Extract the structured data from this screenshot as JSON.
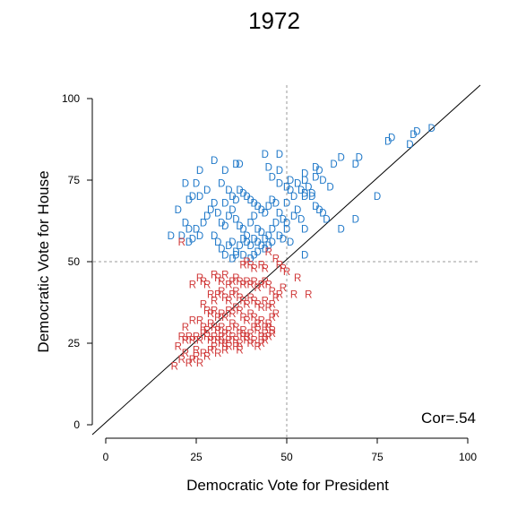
{
  "chart_data": {
    "type": "scatter",
    "title": "1972",
    "xlabel": "Democratic Vote for President",
    "ylabel": "Democratic Vote for House",
    "xlim": [
      0,
      100
    ],
    "ylim": [
      0,
      100
    ],
    "xticks": [
      "0",
      "25",
      "50",
      "75",
      "100"
    ],
    "yticks": [
      "0",
      "25",
      "50",
      "75",
      "100"
    ],
    "annotation": "Cor=.54",
    "reference_lines": {
      "diagonal": true,
      "vline_x": 50,
      "hline_y": 50
    },
    "colors": {
      "D": "#1f78c8",
      "R": "#d03838"
    },
    "series": [
      {
        "marker": "D",
        "points": [
          [
            44,
            83
          ],
          [
            48,
            83
          ],
          [
            90,
            91
          ],
          [
            86,
            90
          ],
          [
            85,
            89
          ],
          [
            79,
            88
          ],
          [
            78,
            87
          ],
          [
            84,
            86
          ],
          [
            65,
            82
          ],
          [
            63,
            80
          ],
          [
            70,
            82
          ],
          [
            69,
            80
          ],
          [
            58,
            79
          ],
          [
            59,
            78
          ],
          [
            55,
            77
          ],
          [
            51,
            75
          ],
          [
            53,
            74
          ],
          [
            55,
            75
          ],
          [
            56,
            73
          ],
          [
            57,
            71
          ],
          [
            55,
            70
          ],
          [
            58,
            76
          ],
          [
            60,
            75
          ],
          [
            62,
            73
          ],
          [
            30,
            81
          ],
          [
            36,
            80
          ],
          [
            37,
            80
          ],
          [
            33,
            78
          ],
          [
            45,
            79
          ],
          [
            48,
            78
          ],
          [
            46,
            76
          ],
          [
            48,
            74
          ],
          [
            50,
            73
          ],
          [
            51,
            72
          ],
          [
            54,
            72
          ],
          [
            55,
            71
          ],
          [
            57,
            70
          ],
          [
            58,
            67
          ],
          [
            59,
            66
          ],
          [
            60,
            65
          ],
          [
            61,
            63
          ],
          [
            50,
            68
          ],
          [
            52,
            70
          ],
          [
            22,
            74
          ],
          [
            25,
            74
          ],
          [
            26,
            78
          ],
          [
            24,
            70
          ],
          [
            23,
            69
          ],
          [
            26,
            70
          ],
          [
            28,
            72
          ],
          [
            32,
            74
          ],
          [
            34,
            72
          ],
          [
            35,
            70
          ],
          [
            33,
            68
          ],
          [
            36,
            69
          ],
          [
            37,
            72
          ],
          [
            38,
            71
          ],
          [
            39,
            70
          ],
          [
            40,
            69
          ],
          [
            41,
            68
          ],
          [
            42,
            67
          ],
          [
            43,
            66
          ],
          [
            44,
            65
          ],
          [
            45,
            67
          ],
          [
            46,
            69
          ],
          [
            47,
            68
          ],
          [
            48,
            65
          ],
          [
            49,
            63
          ],
          [
            50,
            62
          ],
          [
            52,
            64
          ],
          [
            53,
            66
          ],
          [
            54,
            63
          ],
          [
            55,
            60
          ],
          [
            20,
            66
          ],
          [
            22,
            62
          ],
          [
            23,
            60
          ],
          [
            25,
            60
          ],
          [
            26,
            58
          ],
          [
            27,
            62
          ],
          [
            28,
            64
          ],
          [
            29,
            66
          ],
          [
            30,
            68
          ],
          [
            31,
            65
          ],
          [
            32,
            62
          ],
          [
            33,
            61
          ],
          [
            34,
            64
          ],
          [
            35,
            66
          ],
          [
            36,
            63
          ],
          [
            37,
            61
          ],
          [
            38,
            60
          ],
          [
            39,
            58
          ],
          [
            40,
            62
          ],
          [
            41,
            64
          ],
          [
            42,
            60
          ],
          [
            43,
            59
          ],
          [
            44,
            57
          ],
          [
            45,
            58
          ],
          [
            46,
            60
          ],
          [
            47,
            62
          ],
          [
            48,
            58
          ],
          [
            49,
            57
          ],
          [
            50,
            60
          ],
          [
            51,
            56
          ],
          [
            18,
            58
          ],
          [
            21,
            58
          ],
          [
            23,
            56
          ],
          [
            24,
            57
          ],
          [
            30,
            58
          ],
          [
            31,
            56
          ],
          [
            32,
            54
          ],
          [
            34,
            55
          ],
          [
            35,
            56
          ],
          [
            36,
            53
          ],
          [
            37,
            55
          ],
          [
            38,
            57
          ],
          [
            39,
            56
          ],
          [
            40,
            55
          ],
          [
            41,
            57
          ],
          [
            42,
            56
          ],
          [
            43,
            55
          ],
          [
            44,
            54
          ],
          [
            45,
            55
          ],
          [
            46,
            56
          ],
          [
            33,
            52
          ],
          [
            35,
            51
          ],
          [
            36,
            52
          ],
          [
            38,
            52
          ],
          [
            40,
            51
          ],
          [
            41,
            52
          ],
          [
            42,
            53
          ],
          [
            55,
            52
          ],
          [
            65,
            60
          ],
          [
            69,
            63
          ],
          [
            75,
            70
          ]
        ]
      },
      {
        "marker": "R",
        "points": [
          [
            21,
            56
          ],
          [
            45,
            53
          ],
          [
            47,
            51
          ],
          [
            48,
            49
          ],
          [
            49,
            48
          ],
          [
            50,
            47
          ],
          [
            53,
            45
          ],
          [
            38,
            49
          ],
          [
            39,
            50
          ],
          [
            40,
            49
          ],
          [
            41,
            48
          ],
          [
            43,
            49
          ],
          [
            44,
            48
          ],
          [
            26,
            45
          ],
          [
            27,
            44
          ],
          [
            30,
            46
          ],
          [
            31,
            45
          ],
          [
            32,
            44
          ],
          [
            33,
            46
          ],
          [
            34,
            43
          ],
          [
            35,
            44
          ],
          [
            36,
            45
          ],
          [
            37,
            44
          ],
          [
            38,
            43
          ],
          [
            39,
            44
          ],
          [
            40,
            43
          ],
          [
            41,
            44
          ],
          [
            42,
            42
          ],
          [
            43,
            43
          ],
          [
            44,
            44
          ],
          [
            45,
            43
          ],
          [
            46,
            41
          ],
          [
            24,
            43
          ],
          [
            28,
            43
          ],
          [
            29,
            40
          ],
          [
            30,
            38
          ],
          [
            31,
            40
          ],
          [
            32,
            41
          ],
          [
            33,
            39
          ],
          [
            34,
            38
          ],
          [
            35,
            40
          ],
          [
            36,
            41
          ],
          [
            37,
            39
          ],
          [
            38,
            38
          ],
          [
            39,
            37
          ],
          [
            40,
            39
          ],
          [
            41,
            38
          ],
          [
            42,
            37
          ],
          [
            43,
            36
          ],
          [
            44,
            38
          ],
          [
            45,
            36
          ],
          [
            46,
            37
          ],
          [
            47,
            39
          ],
          [
            48,
            40
          ],
          [
            49,
            42
          ],
          [
            52,
            40
          ],
          [
            56,
            40
          ],
          [
            27,
            37
          ],
          [
            28,
            35
          ],
          [
            29,
            34
          ],
          [
            30,
            35
          ],
          [
            31,
            33
          ],
          [
            32,
            34
          ],
          [
            33,
            33
          ],
          [
            34,
            35
          ],
          [
            35,
            34
          ],
          [
            36,
            36
          ],
          [
            37,
            35
          ],
          [
            38,
            33
          ],
          [
            39,
            32
          ],
          [
            40,
            34
          ],
          [
            41,
            33
          ],
          [
            42,
            31
          ],
          [
            43,
            32
          ],
          [
            44,
            30
          ],
          [
            45,
            31
          ],
          [
            46,
            33
          ],
          [
            47,
            34
          ],
          [
            26,
            32
          ],
          [
            27,
            30
          ],
          [
            28,
            29
          ],
          [
            29,
            31
          ],
          [
            30,
            30
          ],
          [
            31,
            29
          ],
          [
            32,
            30
          ],
          [
            33,
            28
          ],
          [
            34,
            29
          ],
          [
            35,
            31
          ],
          [
            36,
            30
          ],
          [
            37,
            28
          ],
          [
            38,
            29
          ],
          [
            39,
            27
          ],
          [
            40,
            28
          ],
          [
            41,
            30
          ],
          [
            42,
            29
          ],
          [
            43,
            27
          ],
          [
            44,
            28
          ],
          [
            45,
            30
          ],
          [
            46,
            29
          ],
          [
            21,
            27
          ],
          [
            22,
            26
          ],
          [
            23,
            27
          ],
          [
            24,
            26
          ],
          [
            25,
            27
          ],
          [
            26,
            26
          ],
          [
            27,
            28
          ],
          [
            28,
            27
          ],
          [
            29,
            26
          ],
          [
            30,
            27
          ],
          [
            31,
            26
          ],
          [
            32,
            27
          ],
          [
            33,
            25
          ],
          [
            34,
            26
          ],
          [
            35,
            27
          ],
          [
            36,
            26
          ],
          [
            37,
            25
          ],
          [
            38,
            27
          ],
          [
            39,
            26
          ],
          [
            40,
            25
          ],
          [
            41,
            26
          ],
          [
            42,
            24
          ],
          [
            43,
            25
          ],
          [
            44,
            26
          ],
          [
            45,
            27
          ],
          [
            46,
            28
          ],
          [
            24,
            32
          ],
          [
            22,
            30
          ],
          [
            20,
            24
          ],
          [
            22,
            22
          ],
          [
            24,
            20
          ],
          [
            25,
            23
          ],
          [
            27,
            22
          ],
          [
            28,
            21
          ],
          [
            29,
            23
          ],
          [
            30,
            24
          ],
          [
            31,
            22
          ],
          [
            19,
            18
          ],
          [
            21,
            20
          ],
          [
            23,
            19
          ],
          [
            25,
            21
          ],
          [
            26,
            19
          ],
          [
            32,
            25
          ],
          [
            33,
            23
          ],
          [
            34,
            24
          ],
          [
            36,
            24
          ],
          [
            37,
            23
          ]
        ]
      }
    ]
  }
}
